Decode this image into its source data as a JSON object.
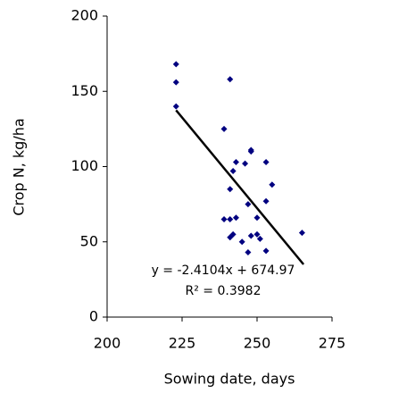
{
  "chart_data": {
    "type": "scatter",
    "x_label": "Sowing date, days",
    "y_label": "Crop N, kg/ha",
    "xlim": [
      200,
      275
    ],
    "xticks": [
      200,
      225,
      250,
      275
    ],
    "ylim": [
      0,
      200
    ],
    "yticks": [
      0,
      50,
      100,
      150,
      200
    ],
    "color": "#000080",
    "x": [
      223,
      223,
      223,
      239,
      241,
      239,
      241,
      243,
      241,
      242,
      243,
      246,
      241,
      242,
      245,
      247,
      248,
      248,
      247,
      248,
      250,
      250,
      251,
      253,
      253,
      253,
      255,
      265
    ],
    "values": [
      168,
      156,
      140,
      125,
      158,
      65,
      65,
      66,
      85,
      97,
      103,
      102,
      53,
      55,
      50,
      75,
      111,
      110,
      43,
      54,
      66,
      55,
      52,
      103,
      77,
      44,
      88,
      56
    ],
    "trendline": {
      "x": [
        223,
        265.5
      ],
      "y": [
        137.45,
        35.01
      ],
      "color": "#000000",
      "equation": "y = -2.4104x + 674.97",
      "r2_label": "R² = 0.3982"
    }
  }
}
